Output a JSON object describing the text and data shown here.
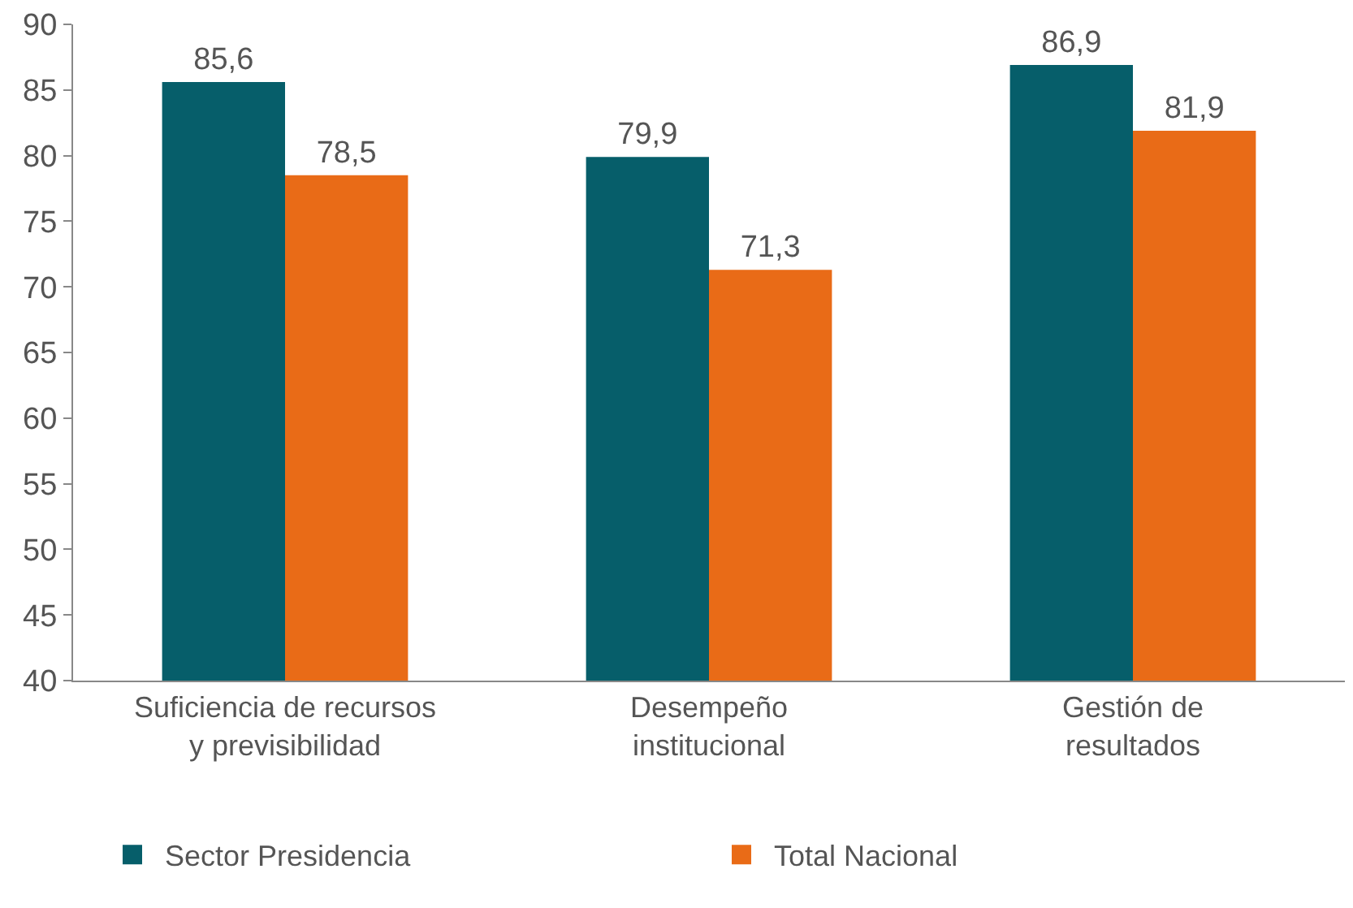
{
  "chart_data": {
    "type": "bar",
    "categories": [
      "Suficiencia de recursos\ny previsibilidad",
      "Desempeño\ninstitucional",
      "Gestión de\nresultados"
    ],
    "series": [
      {
        "name": "Sector Presidencia",
        "color": "#065e6a",
        "values": [
          85.6,
          79.9,
          86.9
        ],
        "value_labels": [
          "85,6",
          "79,9",
          "86,9"
        ]
      },
      {
        "name": "Total Nacional",
        "color": "#e96b17",
        "values": [
          78.5,
          71.3,
          81.9
        ],
        "value_labels": [
          "78,5",
          "71,3",
          "81,9"
        ]
      }
    ],
    "ylim": [
      40,
      90
    ],
    "yticks": [
      40,
      45,
      50,
      55,
      60,
      65,
      70,
      75,
      80,
      85,
      90
    ],
    "legend": "bottom"
  }
}
